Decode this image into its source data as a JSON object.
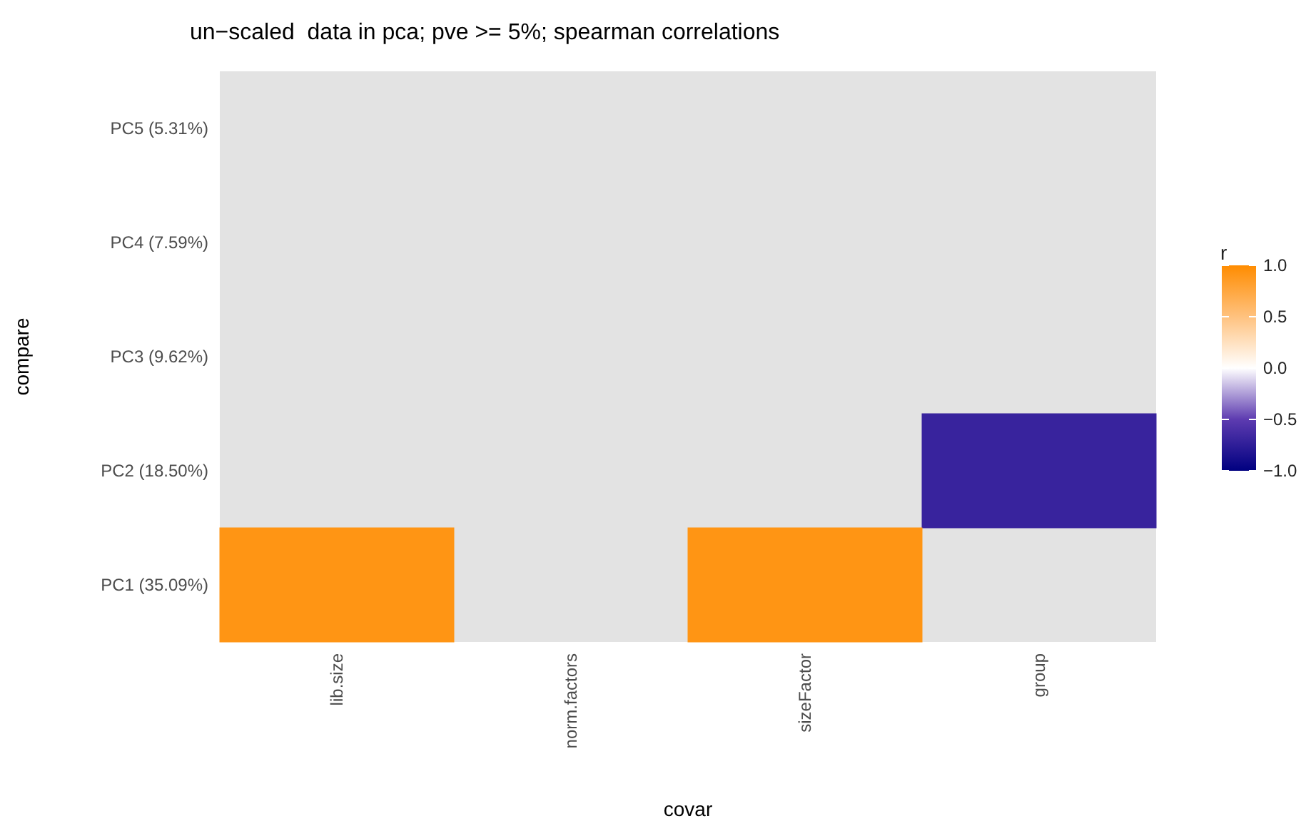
{
  "chart_data": {
    "type": "heatmap",
    "title": "un−scaled  data in pca; pve >= 5%; spearman correlations",
    "xlabel": "covar",
    "ylabel": "compare",
    "clabel": "r",
    "categories": [
      "lib.size",
      "norm.factors",
      "sizeFactor",
      "group"
    ],
    "y_categories": [
      "PC5 (5.31%)",
      "PC4 (7.59%)",
      "PC3 (9.62%)",
      "PC2 (18.50%)",
      "PC1 (35.09%)"
    ],
    "cells": [
      [
        null,
        null,
        null,
        null
      ],
      [
        null,
        null,
        null,
        null
      ],
      [
        null,
        null,
        null,
        null
      ],
      [
        null,
        null,
        null,
        -0.7
      ],
      [
        0.92,
        null,
        0.92,
        null
      ]
    ],
    "clim": [
      -1,
      1
    ],
    "cticks": [
      {
        "value": 1,
        "label": "1.0"
      },
      {
        "value": 0.5,
        "label": "0.5"
      },
      {
        "value": 0,
        "label": "0.0"
      },
      {
        "value": -0.5,
        "label": "−0.5"
      },
      {
        "value": -1,
        "label": "−1.0"
      }
    ]
  }
}
